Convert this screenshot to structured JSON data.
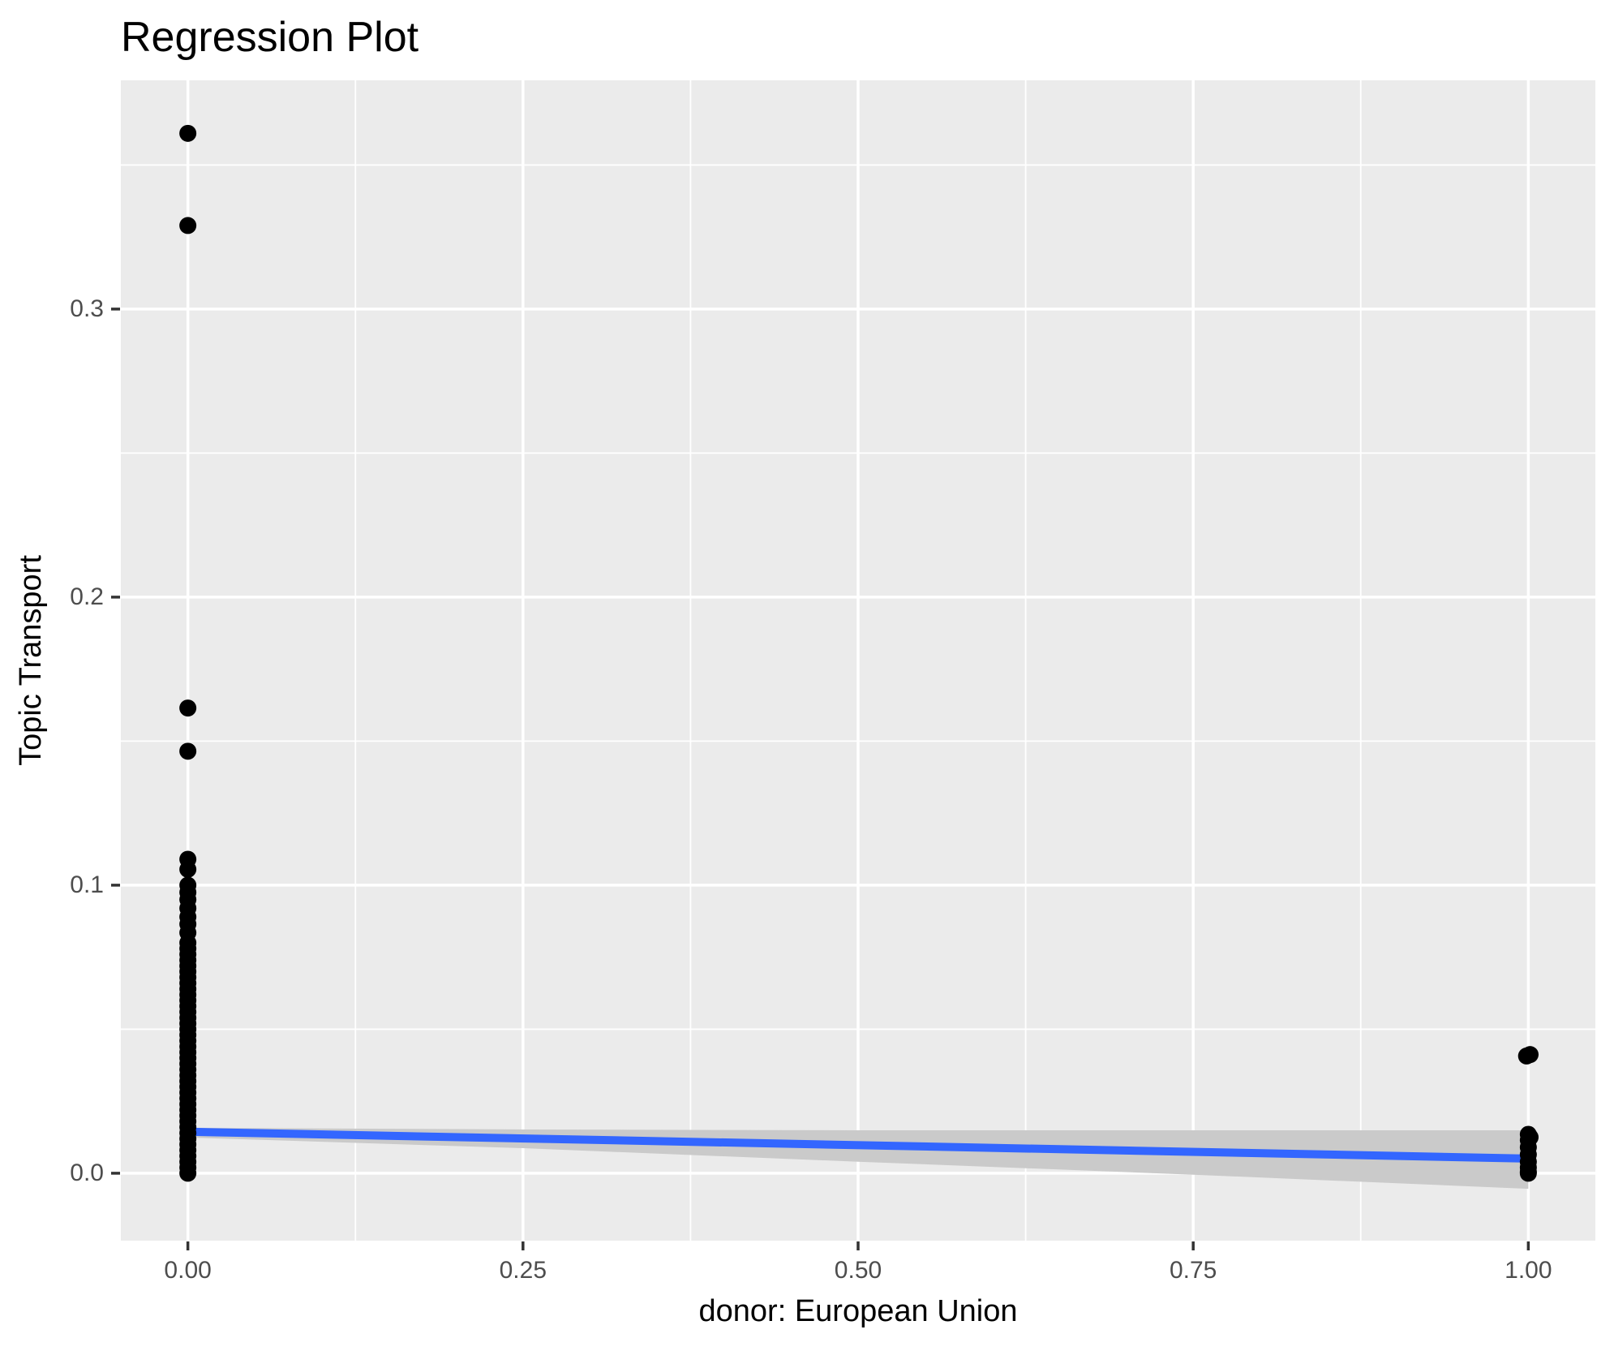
{
  "figure": {
    "background": "#FFFFFF"
  },
  "chart_data": {
    "type": "scatter",
    "title": "Regression Plot",
    "xlabel": "donor: European Union",
    "ylabel": "Topic Transport",
    "xlim": [
      -0.05,
      1.05
    ],
    "ylim": [
      -0.0234,
      0.3794
    ],
    "grid": "on",
    "legend": "none",
    "panel_background": "#EBEBEB",
    "gridline_color": "#FFFFFF",
    "tick_mark_color": "#333333",
    "tick_label_color": "#4D4D4D",
    "axis_label_color": "#000000",
    "point_color": "#000000",
    "point_radius": 10.5,
    "x_ticks": [
      {
        "value": 0.0,
        "label": "0.00"
      },
      {
        "value": 0.25,
        "label": "0.25"
      },
      {
        "value": 0.5,
        "label": "0.50"
      },
      {
        "value": 0.75,
        "label": "0.75"
      },
      {
        "value": 1.0,
        "label": "1.00"
      }
    ],
    "y_ticks": [
      {
        "value": 0.0,
        "label": "0.0"
      },
      {
        "value": 0.1,
        "label": "0.1"
      },
      {
        "value": 0.2,
        "label": "0.2"
      },
      {
        "value": 0.3,
        "label": "0.3"
      }
    ],
    "x_minor_ticks": [
      0.125,
      0.375,
      0.625,
      0.875
    ],
    "y_minor_ticks": [
      0.05,
      0.15,
      0.25,
      0.35
    ],
    "points": [
      [
        0,
        0.361
      ],
      [
        0,
        0.329
      ],
      [
        0,
        0.1615
      ],
      [
        0,
        0.1465
      ],
      [
        0,
        0.109
      ],
      [
        0,
        0.1055
      ],
      [
        0,
        0.1
      ],
      [
        0,
        0.0975
      ],
      [
        0,
        0.095
      ],
      [
        0,
        0.092
      ],
      [
        0,
        0.089
      ],
      [
        0,
        0.0865
      ],
      [
        0,
        0.0835
      ],
      [
        0,
        0.08
      ],
      [
        0,
        0.078
      ],
      [
        0,
        0.076
      ],
      [
        0,
        0.074
      ],
      [
        0,
        0.072
      ],
      [
        0,
        0.07
      ],
      [
        0,
        0.068
      ],
      [
        0,
        0.066
      ],
      [
        0,
        0.064
      ],
      [
        0,
        0.062
      ],
      [
        0,
        0.06
      ],
      [
        0,
        0.058
      ],
      [
        0,
        0.056
      ],
      [
        0,
        0.054
      ],
      [
        0,
        0.052
      ],
      [
        0,
        0.05
      ],
      [
        0,
        0.048
      ],
      [
        0,
        0.046
      ],
      [
        0,
        0.044
      ],
      [
        0,
        0.042
      ],
      [
        0,
        0.04
      ],
      [
        0,
        0.038
      ],
      [
        0,
        0.036
      ],
      [
        0,
        0.034
      ],
      [
        0,
        0.032
      ],
      [
        0,
        0.03
      ],
      [
        0,
        0.028
      ],
      [
        0,
        0.026
      ],
      [
        0,
        0.024
      ],
      [
        0,
        0.022
      ],
      [
        0,
        0.02
      ],
      [
        0,
        0.018
      ],
      [
        0,
        0.016
      ],
      [
        0,
        0.014
      ],
      [
        0,
        0.012
      ],
      [
        0,
        0.01
      ],
      [
        0,
        0.008
      ],
      [
        0,
        0.006
      ],
      [
        0,
        0.004
      ],
      [
        0,
        0.002
      ],
      [
        0,
        0.0
      ],
      [
        0.9987,
        0.0407
      ],
      [
        1.0013,
        0.0412
      ],
      [
        1,
        0.0135
      ],
      [
        1.0013,
        0.0125
      ],
      [
        1,
        0.0115
      ],
      [
        1,
        0.009
      ],
      [
        1,
        0.0065
      ],
      [
        1,
        0.004
      ],
      [
        1,
        0.002
      ],
      [
        1,
        0.0005
      ],
      [
        1,
        0.0
      ]
    ],
    "regression_line": {
      "color": "#3366FF",
      "width": 10,
      "x": [
        0,
        1
      ],
      "y": [
        0.0144,
        0.0051
      ]
    },
    "confidence_band": {
      "color": "#CACACA",
      "x": [
        0,
        0.25,
        0.5,
        0.75,
        1
      ],
      "upper": [
        0.0158,
        0.0152,
        0.0149,
        0.0149,
        0.0149
      ],
      "lower": [
        0.0124,
        0.0087,
        0.004,
        -0.0005,
        -0.0054
      ]
    }
  }
}
